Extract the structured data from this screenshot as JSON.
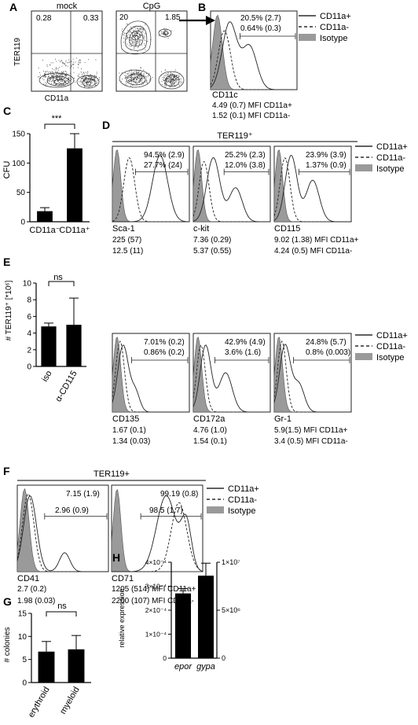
{
  "panel_letters": [
    "A",
    "B",
    "C",
    "D",
    "E",
    "F",
    "G",
    "H"
  ],
  "panelA": {
    "mock_title": "mock",
    "cpg_title": "CpG",
    "mock_q1": "0.28",
    "mock_q2": "0.33",
    "cpg_q1": "20",
    "cpg_q2": "1.85",
    "ylabel": "TER119",
    "xlabel": "CD11a"
  },
  "legend": {
    "pos": "CD11a+",
    "neg": "CD11a-",
    "iso": "Isotype"
  },
  "panelB": {
    "pct_pos": "20.5% (2.7)",
    "pct_neg": "0.64% (0.3)",
    "marker": "CD11c",
    "mfi_pos": "4.49 (0.7)  MFI CD11a+",
    "mfi_neg": "1.52 (0.1)  MFI CD11a-"
  },
  "panelC": {
    "ylabel": "CFU",
    "sig": "***",
    "chart_data": {
      "type": "bar",
      "categories": [
        "CD11a⁻",
        "CD11a⁺"
      ],
      "values": [
        18,
        125
      ],
      "errors": [
        6,
        25
      ],
      "ylim": [
        0,
        150
      ],
      "yticks": [
        "0",
        "50",
        "100",
        "150"
      ]
    }
  },
  "panelD": {
    "header": "TER119⁺",
    "plots": [
      {
        "marker": "Sca-1",
        "pct1": "94.5% (2.9)",
        "pct2": "27.7% (24)",
        "mfi1": "225 (57)",
        "mfi2": "12.5 (11)"
      },
      {
        "marker": "c-kit",
        "pct1": "25.2% (2.3)",
        "pct2": "12.0% (3.8)",
        "mfi1": "7.36 (0.29)",
        "mfi2": "5.37 (0.55)"
      },
      {
        "marker": "CD115",
        "pct1": "23.9% (3.9)",
        "pct2": "1.37% (0.9)",
        "mfi1": "9.02 (1.38)  MFI CD11a+",
        "mfi2": "4.24 (0.5)    MFI CD11a-"
      },
      {
        "marker": "CD135",
        "pct1": "7.01% (0.2)",
        "pct2": "0.86% (0.2)",
        "mfi1": "1.67 (0.1)",
        "mfi2": "1.34 (0.03)"
      },
      {
        "marker": "CD172a",
        "pct1": "42.9% (4.9)",
        "pct2": "3.6% (1.6)",
        "mfi1": "4.76 (1.0)",
        "mfi2": "1.54 (0.1)"
      },
      {
        "marker": "Gr-1",
        "pct1": "24.8% (5.7)",
        "pct2": "0.8% (0.003)",
        "mfi1": "5.9(1.5)        MFI CD11a+",
        "mfi2": "3.4 (0.5)        MFI CD11a-"
      }
    ]
  },
  "panelE": {
    "ylabel": "# TER119⁺ [*10⁶]",
    "sig": "ns",
    "chart_data": {
      "type": "bar",
      "categories": [
        "iso",
        "α-CD115"
      ],
      "values": [
        4.8,
        5.0
      ],
      "errors": [
        0.4,
        3.2
      ],
      "ylim": [
        0,
        10
      ],
      "yticks": [
        "0",
        "2",
        "4",
        "6",
        "8",
        "10"
      ]
    }
  },
  "panelF": {
    "header": "TER119+",
    "plots": [
      {
        "marker": "CD41",
        "pct1": "7.15 (1.9)",
        "pct2": "2.96 (0.9)",
        "mfi1": "2.7 (0.2)",
        "mfi2": "1.98 (0.03)"
      },
      {
        "marker": "CD71",
        "pct1": "99.19 (0.8)",
        "pct2": "98.5 (1.7)",
        "mfi1": "1205 (514)  MFI CD11a+",
        "mfi2": "2200 (107)  MFI CD11a-"
      }
    ]
  },
  "panelG": {
    "ylabel": "# colonies",
    "sig": "ns",
    "chart_data": {
      "type": "bar",
      "categories": [
        "erythroid",
        "myeloid"
      ],
      "values": [
        6.7,
        7.2
      ],
      "errors": [
        2.2,
        3.0
      ],
      "ylim": [
        0,
        15
      ],
      "yticks": [
        "0",
        "5",
        "10",
        "15"
      ]
    }
  },
  "panelH": {
    "ylabel": "relative expression",
    "left_ticks": [
      "0",
      "1×10⁻⁴",
      "2×10⁻⁴",
      "3×10⁻⁴",
      "4×10⁻⁴"
    ],
    "right_ticks": [
      "0",
      "5×10⁶",
      "1×10⁷"
    ],
    "chart_data": {
      "type": "bar",
      "categories": [
        "epor",
        "gypa"
      ],
      "values": [
        0.00027,
        8600000.0
      ],
      "errors": [
        2e-05,
        1300000.0
      ],
      "axes": [
        "left",
        "right"
      ],
      "left_ylim": [
        0,
        0.0004
      ],
      "right_ylim": [
        0,
        10000000.0
      ]
    }
  }
}
